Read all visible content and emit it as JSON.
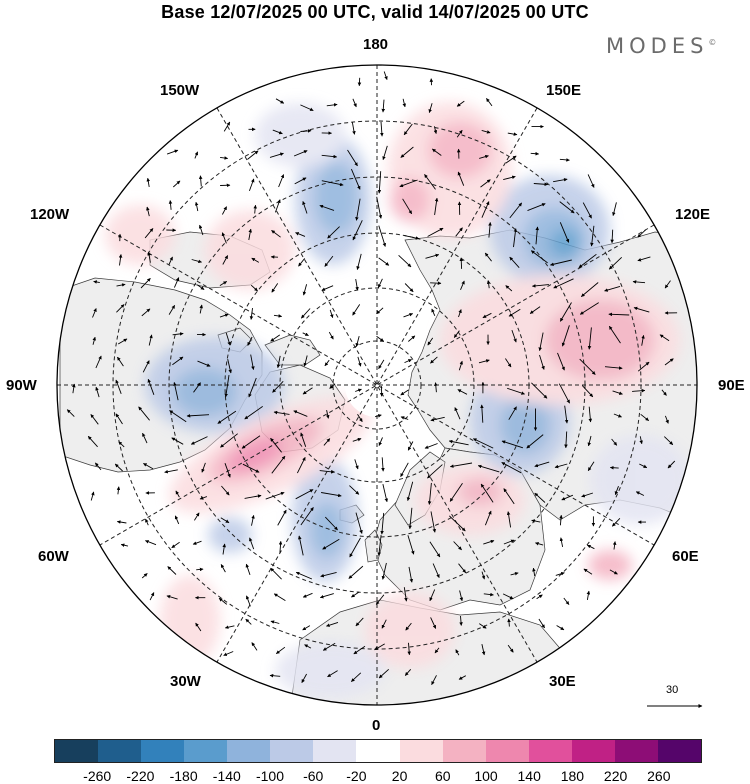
{
  "header": {
    "title": "Base 12/07/2025 00 UTC, valid 14/07/2025 00 UTC",
    "brand": "MODES",
    "brand_mark": "©"
  },
  "map": {
    "projection": "north-polar-stereographic",
    "meridian_labels": {
      "top": "180",
      "bottom": "0",
      "left": "90W",
      "right": "90E",
      "upper_left_1": "150W",
      "upper_left_2": "120W",
      "upper_right_1": "150E",
      "upper_right_2": "120E",
      "lower_left_1": "60W",
      "lower_left_2": "30W",
      "lower_right_1": "60E",
      "lower_right_2": "30E"
    },
    "reference_vector": "30",
    "colors": {
      "land": "#eeeeee",
      "ocean": "#ffffff",
      "negative": "#5b8ec9",
      "positive": "#e06a8e"
    }
  },
  "legend": {
    "ticks": [
      "-260",
      "-220",
      "-180",
      "-140",
      "-100",
      "-60",
      "-20",
      "20",
      "60",
      "100",
      "140",
      "180",
      "220",
      "260"
    ],
    "colors": [
      "#173f5d",
      "#1f5e8d",
      "#3281bb",
      "#5a9ccd",
      "#8fb3dc",
      "#bccae7",
      "#e3e4f2",
      "#ffffff",
      "#fbdcdf",
      "#f4b2c2",
      "#ee87ae",
      "#e1509c",
      "#c02185",
      "#8d0d76",
      "#55056a"
    ]
  }
}
